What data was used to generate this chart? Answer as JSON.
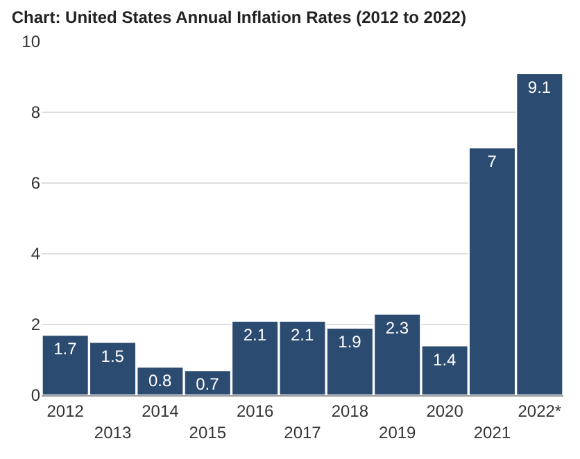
{
  "chart_data": {
    "type": "bar",
    "title": "Chart: United States Annual Inflation Rates (2012 to 2022)",
    "categories": [
      "2012",
      "2013",
      "2014",
      "2015",
      "2016",
      "2017",
      "2018",
      "2019",
      "2020",
      "2021",
      "2022*"
    ],
    "values": [
      1.7,
      1.5,
      0.8,
      0.7,
      2.1,
      2.1,
      1.9,
      2.3,
      1.4,
      7,
      9.1
    ],
    "color": "#2c4b70",
    "ylim": [
      0,
      10
    ],
    "yticks": [
      0,
      2,
      4,
      6,
      8,
      10
    ],
    "grid": "y",
    "data_labels": true,
    "legend": false
  }
}
